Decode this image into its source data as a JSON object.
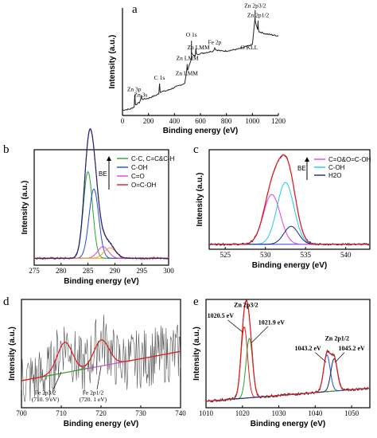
{
  "colors": {
    "raw": "#222222",
    "raw_b": "#e41a1c",
    "envelope": "#c2185b",
    "background": "#2ca02c",
    "blue": "#1f4fd6",
    "green": "#2ca02c",
    "magenta": "#e040e0",
    "orange": "#f0a020",
    "cyan": "#20c8e8",
    "navy": "#1a237e",
    "red": "#e41a1c"
  },
  "chart_data": [
    {
      "panel": "a",
      "type": "line",
      "xlabel": "Binding energy (eV)",
      "ylabel": "Intensity (a.u.)",
      "xlim": [
        0,
        1200
      ],
      "xticks": [
        0,
        200,
        400,
        600,
        800,
        1000,
        1200
      ],
      "ylim": [
        0,
        1
      ],
      "series": [
        {
          "x": [
            0,
            60,
            90,
            95,
            100,
            130,
            140,
            145,
            150,
            200,
            280,
            285,
            290,
            340,
            400,
            480,
            495,
            498,
            500,
            530,
            531,
            532,
            560,
            565,
            570,
            620,
            700,
            710,
            720,
            760,
            800,
            900,
            1000,
            1020,
            1021,
            1022,
            1040,
            1044,
            1045,
            1050,
            1100,
            1200
          ],
          "y": [
            0.05,
            0.06,
            0.08,
            0.2,
            0.1,
            0.12,
            0.15,
            0.19,
            0.15,
            0.16,
            0.2,
            0.3,
            0.22,
            0.23,
            0.26,
            0.3,
            0.42,
            0.48,
            0.42,
            0.52,
            0.7,
            0.58,
            0.55,
            0.62,
            0.57,
            0.58,
            0.6,
            0.63,
            0.61,
            0.6,
            0.6,
            0.62,
            0.66,
            0.9,
            0.98,
            0.88,
            0.8,
            0.88,
            0.82,
            0.78,
            0.76,
            0.74
          ]
        }
      ],
      "annotations": [
        {
          "text": "Zn 3p",
          "x": 90,
          "y": 0.21
        },
        {
          "text": "Zn 3s",
          "x": 140,
          "y": 0.16
        },
        {
          "text": "C 1s",
          "x": 285,
          "y": 0.32
        },
        {
          "text": "Zn LMM",
          "x": 495,
          "y": 0.36
        },
        {
          "text": "Zn LMM",
          "x": 500,
          "y": 0.5
        },
        {
          "text": "O 1s",
          "x": 531,
          "y": 0.72
        },
        {
          "text": "Zn LMM",
          "x": 585,
          "y": 0.6
        },
        {
          "text": "Fe 2p",
          "x": 710,
          "y": 0.65
        },
        {
          "text": "O KLL",
          "x": 975,
          "y": 0.6
        },
        {
          "text": "Zn 2p3/2",
          "x": 1021,
          "y": 0.99
        },
        {
          "text": "Zn 2p1/2",
          "x": 1044,
          "y": 0.9
        }
      ]
    },
    {
      "panel": "b",
      "type": "line",
      "xlabel": "Binding energy (eV)",
      "ylabel": "Intensity (a.u.)",
      "xlim": [
        275,
        300
      ],
      "xticks": [
        275,
        280,
        285,
        290,
        295,
        300
      ],
      "ylim": [
        0,
        1
      ],
      "legend": [
        "C-C, C=C&C-H",
        "C-OH",
        "C=O",
        "O=C-OH"
      ],
      "legend_arrow_label": "BE",
      "legend_position": "top-right",
      "peaks": [
        {
          "name": "C-C, C=C&C-H",
          "center": 285.0,
          "height": 0.75,
          "width": 0.85
        },
        {
          "name": "C-OH",
          "center": 286.1,
          "height": 0.6,
          "width": 0.9
        },
        {
          "name": "C=O",
          "center": 287.8,
          "height": 0.1,
          "width": 1.0
        },
        {
          "name": "O=C-OH",
          "center": 289.1,
          "height": 0.09,
          "width": 1.1
        }
      ],
      "baseline": 0.06
    },
    {
      "panel": "c",
      "type": "line",
      "xlabel": "Binding energy (eV)",
      "ylabel": "Intensity (a.u.)",
      "xlim": [
        523,
        543
      ],
      "xticks": [
        525,
        530,
        535,
        540
      ],
      "ylim": [
        0,
        1
      ],
      "legend": [
        "C=O&O=C-OH",
        "C-OH",
        "H2O"
      ],
      "legend_arrow_label": "BE",
      "legend_position": "top-right",
      "peaks": [
        {
          "name": "C=O&O=C-OH",
          "center": 530.8,
          "height": 0.5,
          "width": 1.05
        },
        {
          "name": "C-OH",
          "center": 532.5,
          "height": 0.62,
          "width": 1.05
        },
        {
          "name": "H2O",
          "center": 533.2,
          "height": 0.18,
          "width": 0.9
        }
      ],
      "baseline": 0.05
    },
    {
      "panel": "d",
      "type": "line",
      "xlabel": "Binding energy (eV)",
      "ylabel": "Intensity (a.u.)",
      "xlim": [
        700,
        740
      ],
      "xticks": [
        700,
        710,
        720,
        730,
        740
      ],
      "ylim": [
        0,
        1
      ],
      "peaks": [
        {
          "name": "Fe 2p3/2",
          "center": 710.9,
          "height": 0.28,
          "width": 1.9
        },
        {
          "name": "Fe 2p1/2",
          "center": 720.1,
          "height": 0.24,
          "width": 1.9
        }
      ],
      "baseline_start": 0.25,
      "baseline_end": 0.52,
      "annotations": [
        {
          "text": "Fe 2p3/2",
          "x": 706,
          "y": 0.12
        },
        {
          "text": "(710. 9 eV)",
          "x": 706,
          "y": 0.06
        },
        {
          "text": "Fe 2p1/2",
          "x": 718,
          "y": 0.12
        },
        {
          "text": "(720. 1 eV)",
          "x": 718,
          "y": 0.06
        }
      ]
    },
    {
      "panel": "e",
      "type": "line",
      "xlabel": "Binding energy (eV)",
      "ylabel": "Intensity (a.u.)",
      "xlim": [
        1010,
        1055
      ],
      "xticks": [
        1010,
        1020,
        1030,
        1040,
        1050
      ],
      "ylim": [
        0,
        1
      ],
      "peaks": [
        {
          "name": "Zn 2p3/2",
          "center": 1020.5,
          "height": 0.66,
          "width": 0.9
        },
        {
          "name": "Zn 2p3/2",
          "center": 1021.9,
          "height": 0.55,
          "width": 0.9
        },
        {
          "name": "Zn 2p1/2",
          "center": 1043.2,
          "height": 0.34,
          "width": 0.9
        },
        {
          "name": "Zn 2p1/2",
          "center": 1045.2,
          "height": 0.3,
          "width": 0.9
        }
      ],
      "baseline_start": 0.06,
      "baseline_end": 0.18,
      "annotations": [
        {
          "text": "Zn 2p3/2",
          "x": 1021,
          "y": 0.93
        },
        {
          "text": "1020.5 eV",
          "x": 1014,
          "y": 0.83
        },
        {
          "text": "1021.9 eV",
          "x": 1028,
          "y": 0.77
        },
        {
          "text": "Zn 2p1/2",
          "x": 1046,
          "y": 0.62
        },
        {
          "text": "1043.2 eV",
          "x": 1038,
          "y": 0.53
        },
        {
          "text": "1045.2 eV",
          "x": 1050,
          "y": 0.53
        }
      ]
    }
  ],
  "labels": {
    "a": "a",
    "b": "b",
    "c": "c",
    "d": "d",
    "e": "e",
    "ylabel": "Intensity (a.u.)",
    "xlabel": "Binding energy (eV)",
    "be": "BE"
  }
}
